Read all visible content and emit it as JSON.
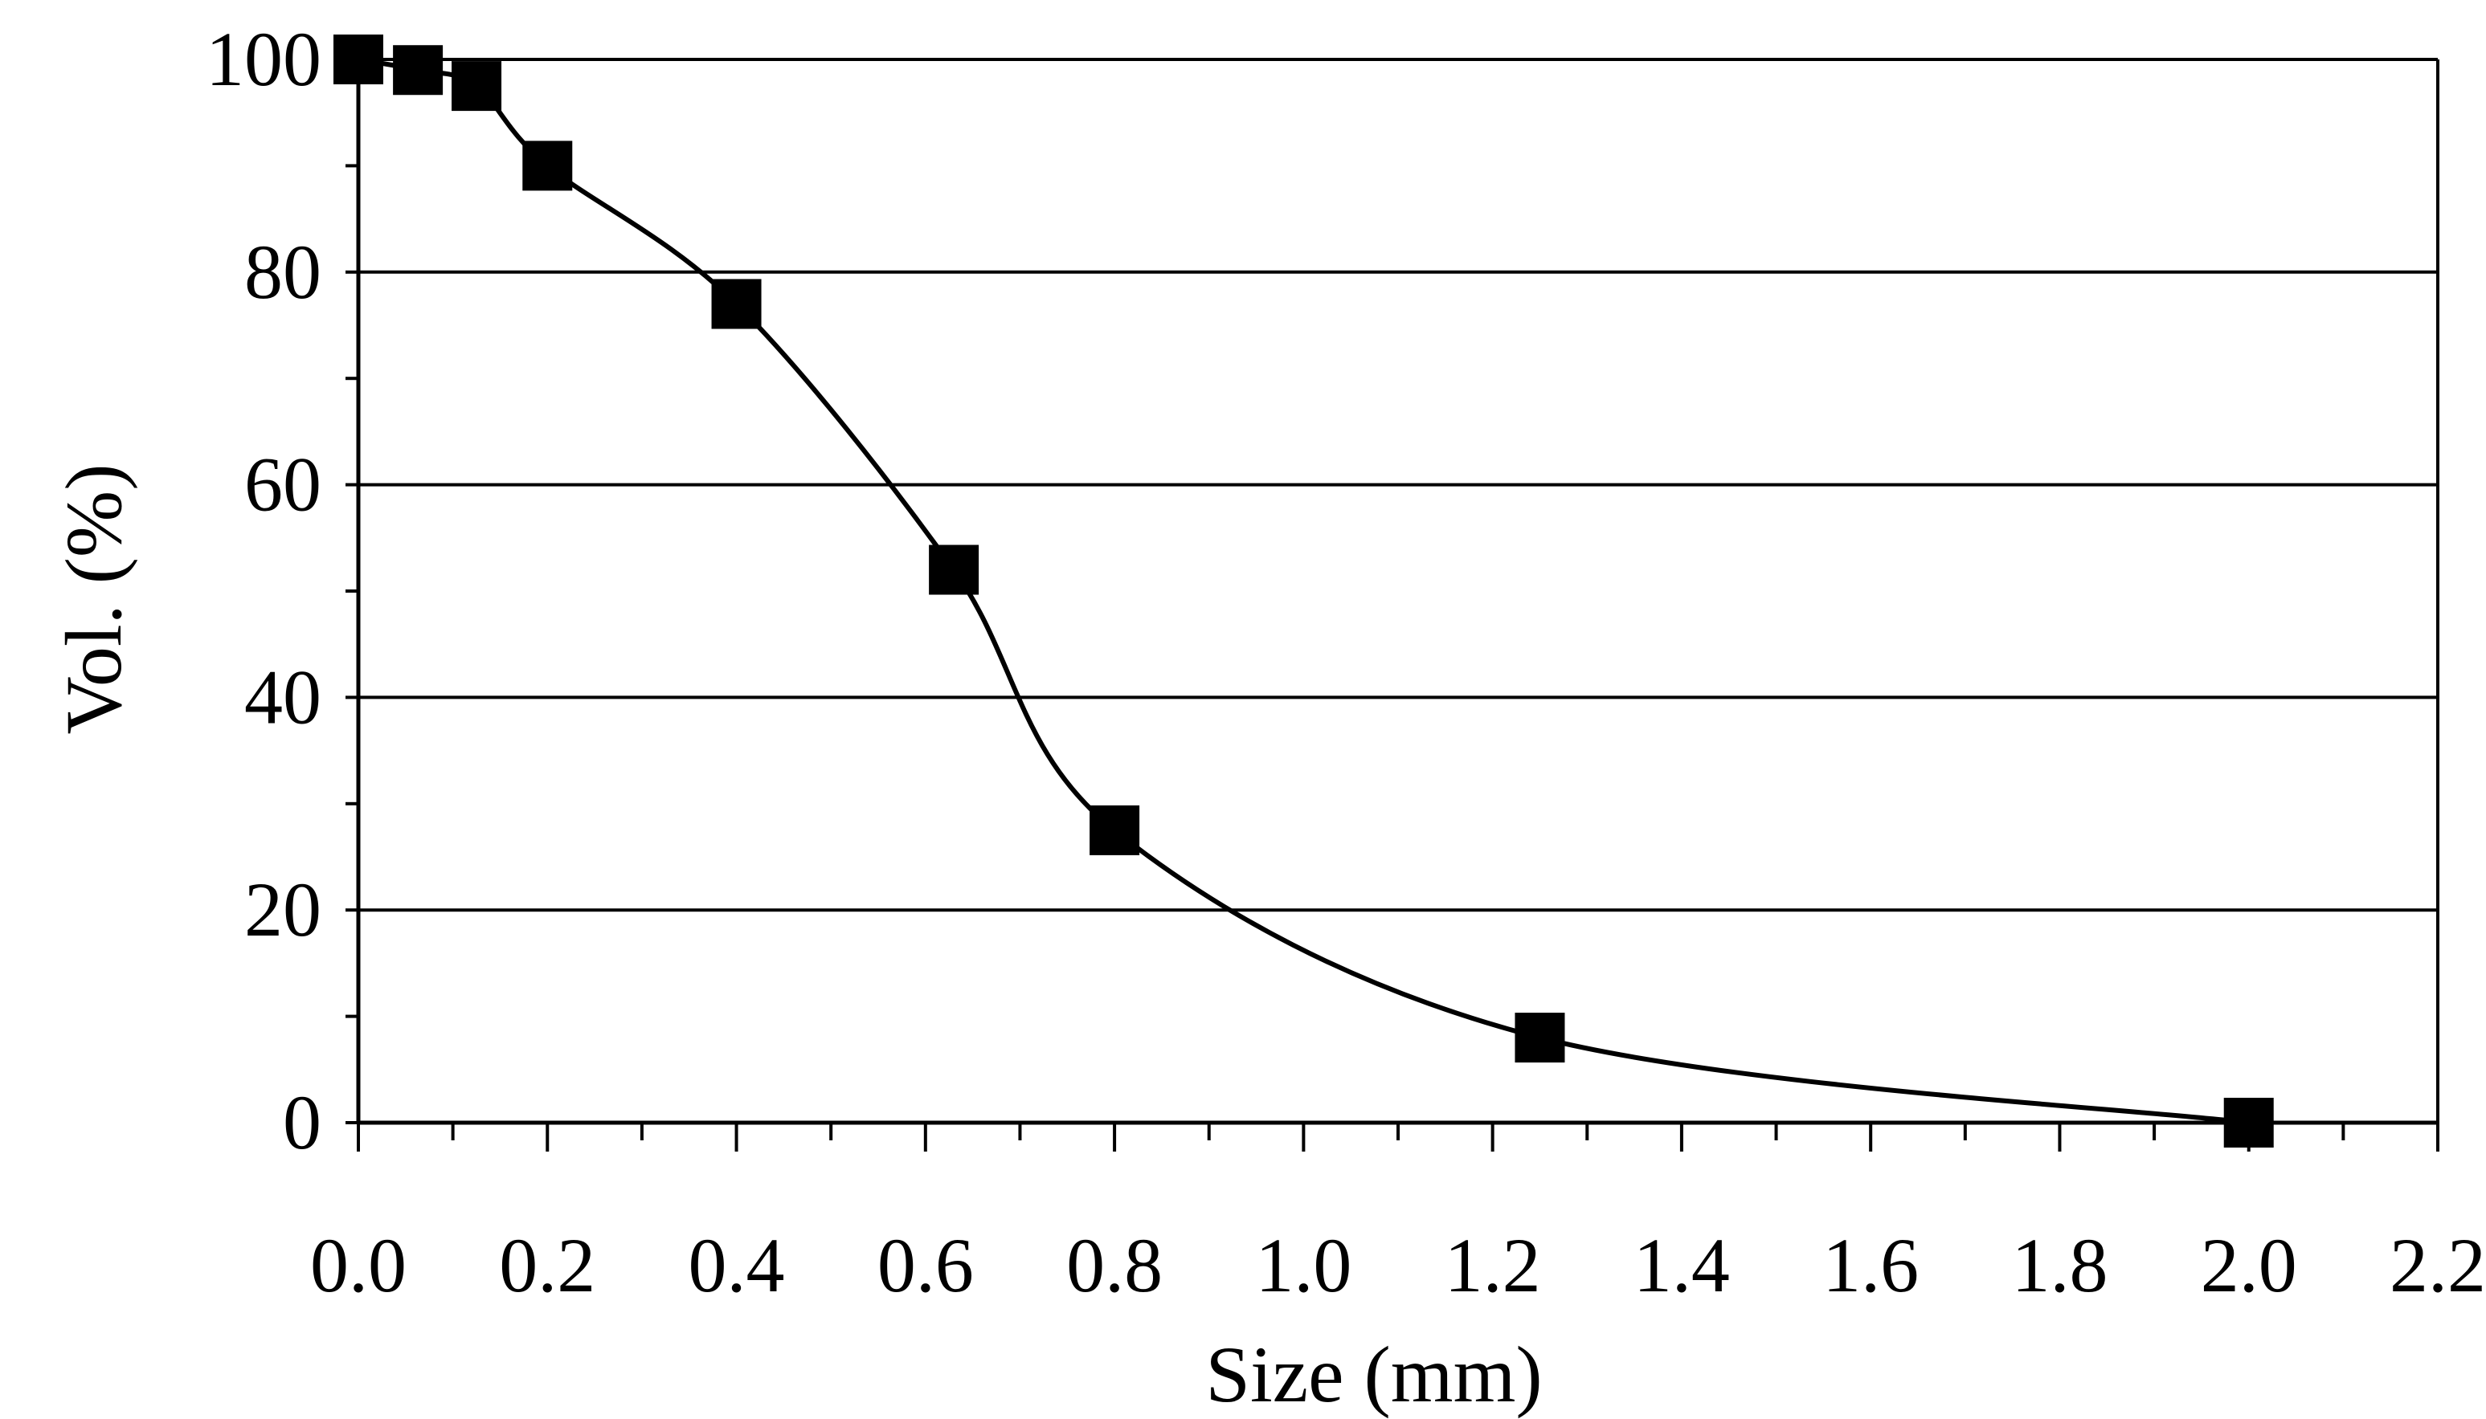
{
  "chart_data": {
    "type": "line",
    "title": "",
    "xlabel": "Size (mm)",
    "ylabel": "Vol. (%)",
    "xlim": [
      0.0,
      2.2
    ],
    "ylim": [
      0,
      100
    ],
    "x_ticks": [
      "0.0",
      "0.2",
      "0.4",
      "0.6",
      "0.8",
      "1.0",
      "1.2",
      "1.4",
      "1.6",
      "1.8",
      "2.0",
      "2.2"
    ],
    "y_ticks": [
      "0",
      "20",
      "40",
      "60",
      "80",
      "100"
    ],
    "grid": "horizontal",
    "legend": "none",
    "series": [
      {
        "marker": "square",
        "color": "#000000",
        "x": [
          0.0,
          0.063,
          0.125,
          0.2,
          0.4,
          0.63,
          0.8,
          1.25,
          2.0
        ],
        "y": [
          100,
          99,
          97.5,
          90,
          77,
          52,
          27.5,
          8,
          0
        ]
      }
    ]
  }
}
